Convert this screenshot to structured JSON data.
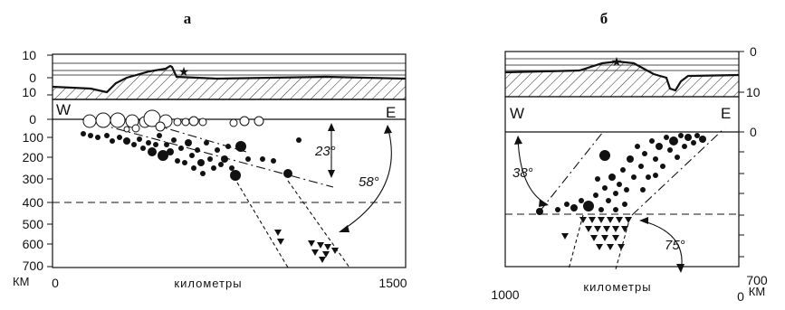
{
  "figure": {
    "panels": [
      {
        "label": "а",
        "direction_left": "W",
        "direction_right": "E",
        "topo_ticks": [
          "10",
          "0",
          "10"
        ],
        "depth_ticks": [
          "0",
          "100",
          "200",
          "300",
          "400",
          "500",
          "600",
          "700"
        ],
        "depth_unit": "КМ",
        "x_ticks": [
          "0",
          "1500"
        ],
        "x_label": "километры",
        "angles": [
          "23°",
          "58°"
        ]
      },
      {
        "label": "б",
        "direction_left": "W",
        "direction_right": "E",
        "topo_ticks": [
          "0",
          "10"
        ],
        "depth_ticks": [
          "0",
          "700"
        ],
        "depth_unit": "КМ",
        "x_ticks": [
          "1000",
          "0"
        ],
        "x_label": "километры",
        "angles": [
          "38°",
          "75°"
        ]
      }
    ]
  },
  "colors": {
    "ink": "#111111",
    "background": "#ffffff"
  }
}
